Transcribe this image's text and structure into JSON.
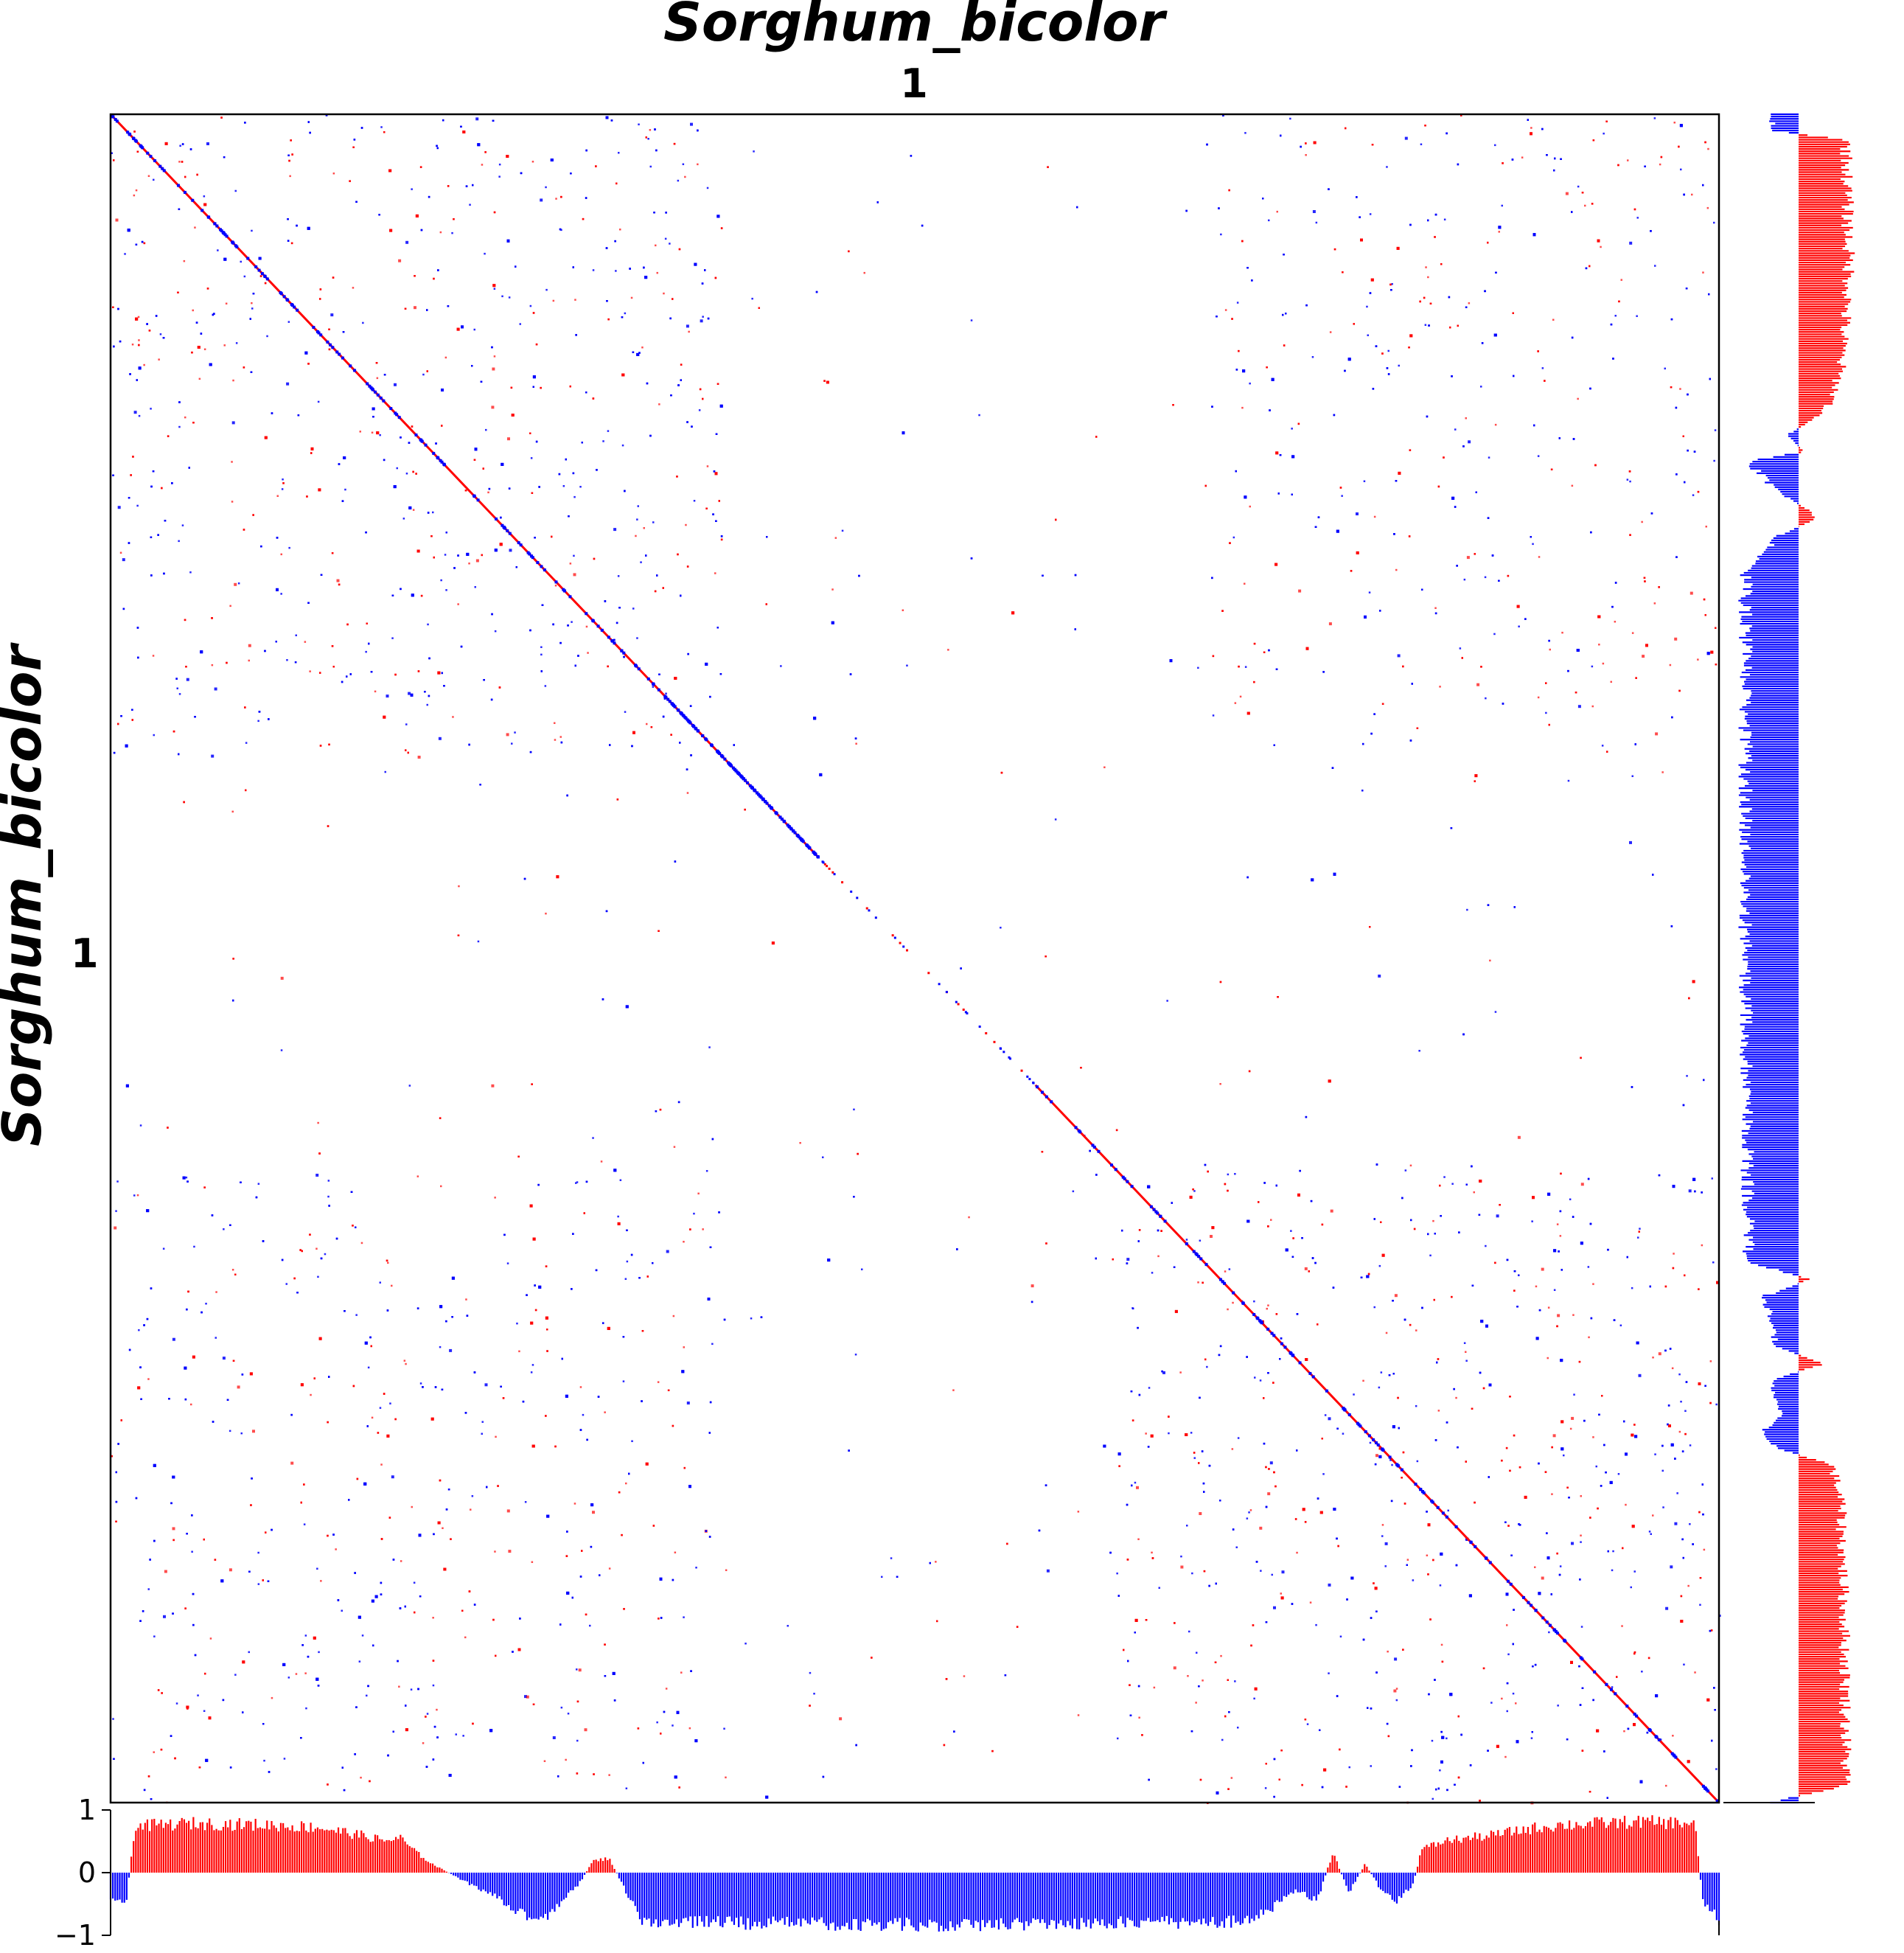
{
  "chart_data": {
    "type": "scatter",
    "title": "Sorghum_bicolor",
    "xlabel": "Sorghum_bicolor",
    "ylabel": "Sorghum_bicolor",
    "x_chromosomes": [
      "1"
    ],
    "y_chromosomes": [
      "1"
    ],
    "colors": {
      "forward": "#ff0000",
      "reverse": "#0000ff",
      "frame": "#000000"
    },
    "diagonal_segments": [
      {
        "x0": 0.0,
        "y0": 0.0,
        "x1": 0.345,
        "y1": 0.345,
        "strand": "mixed"
      },
      {
        "x0": 0.345,
        "y0": 0.345,
        "x1": 0.44,
        "y1": 0.44,
        "strand": "mixed"
      },
      {
        "x0": 0.575,
        "y0": 0.575,
        "x1": 1.0,
        "y1": 1.0,
        "strand": "mixed"
      }
    ],
    "bottom_track": {
      "ylim": [
        -1,
        1
      ],
      "yticks": [
        "1",
        "0",
        "−1"
      ],
      "profile": [
        [
          0.0,
          -0.5
        ],
        [
          0.01,
          -0.45
        ],
        [
          0.015,
          0.8
        ],
        [
          0.05,
          0.85
        ],
        [
          0.1,
          0.82
        ],
        [
          0.13,
          0.78
        ],
        [
          0.16,
          0.62
        ],
        [
          0.17,
          0.55
        ],
        [
          0.18,
          0.6
        ],
        [
          0.19,
          0.35
        ],
        [
          0.2,
          0.15
        ],
        [
          0.22,
          -0.15
        ],
        [
          0.235,
          -0.35
        ],
        [
          0.25,
          -0.6
        ],
        [
          0.265,
          -0.9
        ],
        [
          0.28,
          -0.5
        ],
        [
          0.29,
          -0.25
        ],
        [
          0.3,
          0.2
        ],
        [
          0.31,
          0.25
        ],
        [
          0.32,
          -0.3
        ],
        [
          0.33,
          -0.85
        ],
        [
          0.5,
          -0.9
        ],
        [
          0.7,
          -0.85
        ],
        [
          0.72,
          -0.7
        ],
        [
          0.73,
          -0.4
        ],
        [
          0.74,
          -0.3
        ],
        [
          0.75,
          -0.5
        ],
        [
          0.76,
          0.35
        ],
        [
          0.77,
          -0.35
        ],
        [
          0.78,
          0.15
        ],
        [
          0.79,
          -0.3
        ],
        [
          0.8,
          -0.5
        ],
        [
          0.81,
          -0.2
        ],
        [
          0.815,
          0.4
        ],
        [
          0.83,
          0.55
        ],
        [
          0.86,
          0.65
        ],
        [
          0.88,
          0.75
        ],
        [
          0.9,
          0.82
        ],
        [
          0.95,
          0.88
        ],
        [
          0.985,
          0.85
        ],
        [
          0.99,
          -0.5
        ],
        [
          1.0,
          -0.8
        ]
      ]
    },
    "right_track": {
      "xlim": [
        -1,
        1
      ],
      "profile": [
        [
          0.0,
          -0.5
        ],
        [
          0.01,
          -0.45
        ],
        [
          0.015,
          0.85
        ],
        [
          0.1,
          0.9
        ],
        [
          0.15,
          0.75
        ],
        [
          0.17,
          0.6
        ],
        [
          0.18,
          0.3
        ],
        [
          0.19,
          -0.2
        ],
        [
          0.2,
          0.1
        ],
        [
          0.205,
          -0.9
        ],
        [
          0.22,
          -0.5
        ],
        [
          0.225,
          -0.3
        ],
        [
          0.235,
          0.2
        ],
        [
          0.24,
          0.3
        ],
        [
          0.25,
          -0.4
        ],
        [
          0.26,
          -0.6
        ],
        [
          0.27,
          -0.95
        ],
        [
          0.5,
          -0.95
        ],
        [
          0.68,
          -0.9
        ],
        [
          0.69,
          0.2
        ],
        [
          0.7,
          -0.6
        ],
        [
          0.73,
          -0.4
        ],
        [
          0.74,
          0.45
        ],
        [
          0.75,
          -0.5
        ],
        [
          0.77,
          -0.3
        ],
        [
          0.78,
          -0.6
        ],
        [
          0.79,
          -0.4
        ],
        [
          0.8,
          0.6
        ],
        [
          0.82,
          0.75
        ],
        [
          0.85,
          0.78
        ],
        [
          0.9,
          0.82
        ],
        [
          0.99,
          0.85
        ],
        [
          1.0,
          -0.55
        ]
      ]
    }
  }
}
